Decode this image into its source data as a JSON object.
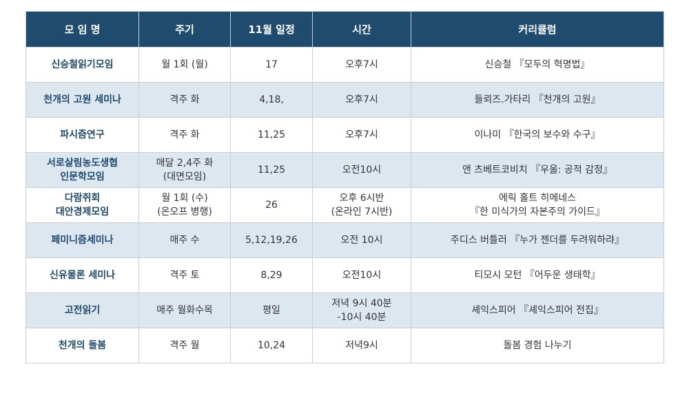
{
  "header": {
    "name": "모 임 명",
    "cycle": "주기",
    "schedule": "11월 일정",
    "time": "시간",
    "curriculum": "커리큘럼"
  },
  "rows": [
    {
      "name": [
        "신승철읽기모임"
      ],
      "cycle": [
        "월 1회 (월)"
      ],
      "schedule": [
        "17"
      ],
      "time": [
        "오후7시"
      ],
      "curriculum": [
        "신승철 『모두의 혁명법』"
      ]
    },
    {
      "name": [
        "천개의 고원 세미나"
      ],
      "cycle": [
        "격주 화"
      ],
      "schedule": [
        "4,18,"
      ],
      "time": [
        "오후7시"
      ],
      "curriculum": [
        "들뢰즈.가타리 『천개의 고원』"
      ]
    },
    {
      "name": [
        "파시즘연구"
      ],
      "cycle": [
        "격주 화"
      ],
      "schedule": [
        "11,25"
      ],
      "time": [
        "오후7시"
      ],
      "curriculum": [
        "이나미 『한국의 보수와 수구』"
      ]
    },
    {
      "name": [
        "서로살림농도생협",
        "인문학모임"
      ],
      "cycle": [
        "매달 2,4주 화",
        "(대면모임)"
      ],
      "schedule": [
        "11,25"
      ],
      "time": [
        "오전10시"
      ],
      "curriculum": [
        "앤 츠베트코비치 『우울: 공적 감정』"
      ]
    },
    {
      "name": [
        "다람쥐회",
        "대안경제모임"
      ],
      "cycle": [
        "월 1회 (수)",
        "(온오프 병행)"
      ],
      "schedule": [
        "26"
      ],
      "time": [
        "오후 6시반",
        "(온라인 7시반)"
      ],
      "curriculum": [
        "에릭 홀트 히메네스",
        "『한 미식가의 자본주의 가이드』"
      ]
    },
    {
      "name": [
        "페미니즘세미나"
      ],
      "cycle": [
        "매주 수"
      ],
      "schedule": [
        "5,12,19,26"
      ],
      "time": [
        "오전 10시"
      ],
      "curriculum": [
        "주디스 버틀러 『누가 젠더를 두려워하랴』"
      ]
    },
    {
      "name": [
        "신유물론 세미나"
      ],
      "cycle": [
        "격주 토"
      ],
      "schedule": [
        "8,29"
      ],
      "time": [
        "오전10시"
      ],
      "curriculum": [
        "티모시 모턴 『어두운 생태학』"
      ]
    },
    {
      "name": [
        "고전읽기"
      ],
      "cycle": [
        "매주 월화수목"
      ],
      "schedule": [
        "평일"
      ],
      "time": [
        "저녁 9시 40분",
        "-10시 40분"
      ],
      "curriculum": [
        "셰익스피어 『셰익스피어 전집』"
      ]
    },
    {
      "name": [
        "천개의 돌봄"
      ],
      "cycle": [
        "격주 월"
      ],
      "schedule": [
        "10,24"
      ],
      "time": [
        "저녁9시"
      ],
      "curriculum": [
        "돌봄 경험 나누기"
      ]
    }
  ],
  "colors": {
    "header_bg": "#1f4b6e",
    "header_text": "#ffffff",
    "name_text": "#1f4b6e",
    "alt_row_bg": "#dde7f0",
    "border": "#c6cfd8"
  }
}
